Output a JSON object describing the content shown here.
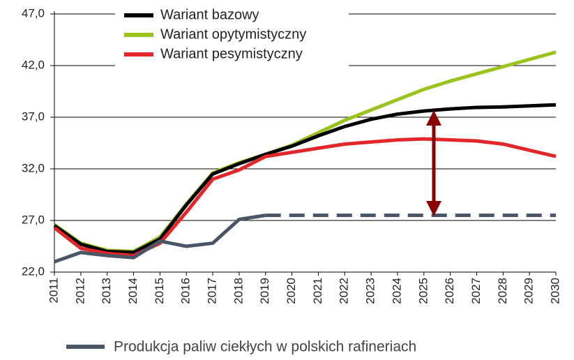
{
  "chart_data": {
    "type": "line",
    "categories": [
      "2011",
      "2012",
      "2013",
      "2014",
      "2015",
      "2016",
      "2017",
      "2018",
      "2019",
      "2020",
      "2021",
      "2022",
      "2023",
      "2024",
      "2025",
      "2026",
      "2027",
      "2028",
      "2029",
      "2030"
    ],
    "series": [
      {
        "name": "Wariant opytymistyczny",
        "color": "#9ac31c",
        "values": [
          26.6,
          24.8,
          24.1,
          24.0,
          25.4,
          28.6,
          31.6,
          32.6,
          33.4,
          34.3,
          35.5,
          36.7,
          37.7,
          38.7,
          39.7,
          40.5,
          41.2,
          41.9,
          42.6,
          43.3
        ]
      },
      {
        "name": "Wariant bazowy",
        "color": "#000000",
        "values": [
          26.5,
          24.7,
          24.0,
          23.9,
          25.2,
          28.5,
          31.5,
          32.5,
          33.4,
          34.2,
          35.2,
          36.1,
          36.8,
          37.3,
          37.6,
          37.8,
          37.95,
          38.0,
          38.1,
          38.2
        ]
      },
      {
        "name": "Wariant pesymistyczny",
        "color": "#e3262a",
        "values": [
          26.3,
          24.3,
          23.8,
          23.6,
          24.8,
          27.8,
          31.0,
          31.9,
          33.2,
          33.6,
          34.0,
          34.4,
          34.6,
          34.8,
          34.9,
          34.8,
          34.7,
          34.4,
          33.8,
          33.2
        ]
      },
      {
        "name": "Produkcja paliw ciekłych w polskich rafineriach",
        "color": "#4a5566",
        "values": [
          23.0,
          23.9,
          23.6,
          23.4,
          25.0,
          24.5,
          24.8,
          27.1,
          27.5,
          null,
          null,
          null,
          null,
          null,
          null,
          null,
          null,
          null,
          null,
          null
        ]
      }
    ],
    "production_forecast": {
      "color": "#4a5566",
      "dashed": true,
      "values": [
        null,
        null,
        null,
        null,
        null,
        null,
        null,
        null,
        27.5,
        27.5,
        27.5,
        27.5,
        27.5,
        27.5,
        27.5,
        27.5,
        27.5,
        27.5,
        27.5,
        27.5
      ]
    },
    "ylim": [
      22,
      47
    ],
    "yticks": [
      {
        "value": 22,
        "label": "22,0"
      },
      {
        "value": 27,
        "label": "27,0"
      },
      {
        "value": 32,
        "label": "32,0"
      },
      {
        "value": 37,
        "label": "37,0"
      },
      {
        "value": 42,
        "label": "42,0"
      },
      {
        "value": 47,
        "label": "47,0"
      }
    ],
    "grid": true
  }
}
